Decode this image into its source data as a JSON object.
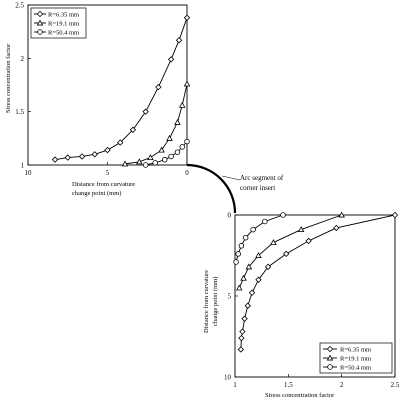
{
  "figure": {
    "annotation": "Arc segment of corner insert"
  },
  "chart_data": [
    {
      "type": "line",
      "panel": "top-left",
      "xlabel": "Distance from curvature change point (mm)",
      "ylabel": "Stress concentration factor",
      "xlim": [
        10,
        0
      ],
      "ylim": [
        1,
        2.5
      ],
      "x_reversed": true,
      "xticks": [
        "10",
        "5",
        "0"
      ],
      "yticks": [
        "1",
        "1.5",
        "2",
        "2.5"
      ],
      "legend_position": "top-left",
      "series": [
        {
          "name": "R=6.35 mm",
          "marker": "diamond",
          "x": [
            8.3,
            7.5,
            6.6,
            5.8,
            5.0,
            4.2,
            3.4,
            2.6,
            1.8,
            1.0,
            0.5,
            0.0
          ],
          "y": [
            1.05,
            1.07,
            1.08,
            1.1,
            1.14,
            1.21,
            1.33,
            1.5,
            1.73,
            1.99,
            2.17,
            2.38
          ]
        },
        {
          "name": "R=19.1 mm",
          "marker": "triangle",
          "x": [
            3.9,
            3.0,
            2.3,
            1.6,
            1.1,
            0.6,
            0.3,
            0.0
          ],
          "y": [
            1.01,
            1.03,
            1.07,
            1.14,
            1.25,
            1.4,
            1.56,
            1.76
          ]
        },
        {
          "name": "R=50.4 mm",
          "marker": "circle",
          "x": [
            2.6,
            2.0,
            1.4,
            1.0,
            0.6,
            0.3,
            0.0
          ],
          "y": [
            1.0,
            1.02,
            1.05,
            1.08,
            1.12,
            1.17,
            1.22
          ]
        }
      ]
    },
    {
      "type": "line",
      "panel": "bottom-right",
      "xlabel": "Stress concentration factor",
      "ylabel": "Distance from curvature change point (mm)",
      "xlim": [
        1,
        2.5
      ],
      "ylim": [
        0,
        10
      ],
      "y_reversed": true,
      "xticks": [
        "1",
        "1.5",
        "2",
        "2.5"
      ],
      "yticks": [
        "0",
        "5",
        "10"
      ],
      "legend_position": "bottom-right",
      "series": [
        {
          "name": "R=6.35 mm",
          "marker": "diamond",
          "x": [
            2.5,
            1.95,
            1.69,
            1.48,
            1.31,
            1.22,
            1.16,
            1.12,
            1.09,
            1.07,
            1.06,
            1.055
          ],
          "y": [
            0.0,
            0.8,
            1.6,
            2.4,
            3.2,
            4.0,
            4.8,
            5.6,
            6.4,
            7.2,
            7.6,
            8.3
          ]
        },
        {
          "name": "R=19.1 mm",
          "marker": "triangle",
          "x": [
            2.0,
            1.62,
            1.36,
            1.22,
            1.13,
            1.08,
            1.04
          ],
          "y": [
            0.0,
            0.9,
            1.7,
            2.5,
            3.2,
            3.9,
            4.5
          ]
        },
        {
          "name": "R=50.4 mm",
          "marker": "circle",
          "x": [
            1.45,
            1.28,
            1.17,
            1.1,
            1.06,
            1.03,
            1.01
          ],
          "y": [
            0.0,
            0.4,
            0.9,
            1.4,
            1.9,
            2.4,
            2.9
          ]
        }
      ]
    }
  ]
}
